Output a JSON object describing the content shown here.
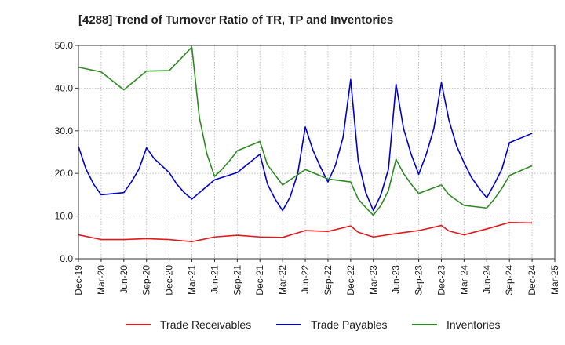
{
  "chart_data": {
    "type": "line",
    "title": "[4288]  Trend of Turnover Ratio of TR, TP and Inventories",
    "xlabel": "",
    "ylabel": "",
    "ylim": [
      0,
      50
    ],
    "yticks": [
      "0.0",
      "10.0",
      "20.0",
      "30.0",
      "40.0",
      "50.0"
    ],
    "xticks": [
      "Dec-19",
      "Mar-20",
      "Jun-20",
      "Sep-20",
      "Dec-20",
      "Mar-21",
      "Jun-21",
      "Sep-21",
      "Dec-21",
      "Mar-22",
      "Jun-22",
      "Sep-22",
      "Dec-22",
      "Mar-23",
      "Jun-23",
      "Sep-23",
      "Dec-23",
      "Mar-24",
      "Jun-24",
      "Sep-24",
      "Dec-24",
      "Mar-25"
    ],
    "grid": true,
    "legend_position": "bottom",
    "x": [
      "Dec-19",
      "Jan-20",
      "Feb-20",
      "Mar-20",
      "Apr-20",
      "May-20",
      "Jun-20",
      "Jul-20",
      "Aug-20",
      "Sep-20",
      "Oct-20",
      "Nov-20",
      "Dec-20",
      "Jan-21",
      "Feb-21",
      "Mar-21",
      "Apr-21",
      "May-21",
      "Jun-21",
      "Jul-21",
      "Aug-21",
      "Sep-21",
      "Oct-21",
      "Nov-21",
      "Dec-21",
      "Jan-22",
      "Feb-22",
      "Mar-22",
      "Apr-22",
      "May-22",
      "Jun-22",
      "Jul-22",
      "Aug-22",
      "Sep-22",
      "Oct-22",
      "Nov-22",
      "Dec-22",
      "Jan-23",
      "Feb-23",
      "Mar-23",
      "Apr-23",
      "May-23",
      "Jun-23",
      "Jul-23",
      "Aug-23",
      "Sep-23",
      "Oct-23",
      "Nov-23",
      "Dec-23",
      "Jan-24",
      "Feb-24",
      "Mar-24",
      "Apr-24",
      "May-24",
      "Jun-24",
      "Jul-24",
      "Aug-24",
      "Sep-24",
      "Oct-24",
      "Nov-24",
      "Dec-24"
    ],
    "series": [
      {
        "name": "Trade Receivables",
        "color": "#e31a1c",
        "values": [
          5.6,
          null,
          null,
          4.5,
          null,
          null,
          4.5,
          null,
          null,
          4.7,
          null,
          null,
          4.5,
          null,
          null,
          4.0,
          null,
          null,
          5.1,
          null,
          null,
          5.5,
          null,
          null,
          5.1,
          null,
          null,
          5.0,
          null,
          null,
          6.6,
          null,
          null,
          6.4,
          null,
          null,
          7.7,
          6.2,
          null,
          5.1,
          null,
          null,
          5.9,
          null,
          null,
          6.6,
          null,
          null,
          7.8,
          6.5,
          null,
          5.6,
          null,
          null,
          7.0,
          null,
          null,
          8.5,
          null,
          null,
          8.4
        ]
      },
      {
        "name": "Trade Payables",
        "color": "#0000cc",
        "values": [
          26.3,
          21.0,
          17.5,
          15.0,
          null,
          null,
          15.5,
          18.0,
          21.0,
          26.0,
          23.5,
          null,
          20.2,
          17.5,
          15.5,
          14.0,
          15.5,
          null,
          18.5,
          null,
          null,
          20.2,
          null,
          null,
          24.5,
          17.5,
          14.0,
          11.3,
          14.5,
          20.0,
          30.9,
          25.5,
          21.5,
          18.0,
          22.0,
          28.5,
          42.0,
          23.0,
          15.5,
          11.3,
          15.0,
          21.0,
          40.9,
          30.5,
          24.5,
          19.8,
          24.5,
          30.5,
          41.3,
          32.5,
          26.5,
          22.5,
          19.0,
          16.5,
          14.3,
          17.5,
          21.0,
          27.2,
          null,
          null,
          29.4
        ]
      },
      {
        "name": "Inventories",
        "color": "#2e8b22",
        "values": [
          44.9,
          null,
          null,
          43.8,
          null,
          null,
          39.6,
          null,
          null,
          44.0,
          null,
          null,
          44.1,
          null,
          null,
          49.6,
          33.0,
          24.5,
          19.3,
          21.0,
          23.0,
          25.3,
          null,
          null,
          27.5,
          22.0,
          null,
          17.3,
          18.5,
          null,
          20.9,
          null,
          null,
          18.7,
          null,
          null,
          18.0,
          14.0,
          12.0,
          10.2,
          12.5,
          16.0,
          23.3,
          20.0,
          17.5,
          15.3,
          null,
          null,
          17.3,
          15.0,
          null,
          12.5,
          null,
          null,
          11.9,
          14.0,
          16.5,
          19.5,
          null,
          null,
          21.8
        ]
      }
    ]
  }
}
